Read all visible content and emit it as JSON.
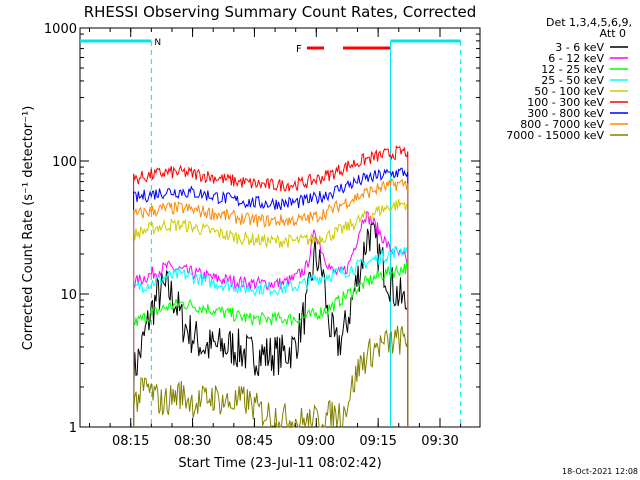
{
  "chart_data": {
    "type": "line",
    "title": "RHESSI Observing Summary Count Rates, Corrected",
    "xlabel": "Start Time (23-Jul-11 08:02:42)",
    "ylabel": "Corrected Count Rate (s⁻¹ detector⁻¹)",
    "yscale": "log",
    "ylim": [
      1,
      1000
    ],
    "xlim_minutes": [
      0,
      97
    ],
    "x_unit": "minutes after 08:02:42",
    "x_ticks": [
      {
        "label": "08:15",
        "minute": 12.3
      },
      {
        "label": "08:30",
        "minute": 27.3
      },
      {
        "label": "08:45",
        "minute": 42.3
      },
      {
        "label": "09:00",
        "minute": 57.3
      },
      {
        "label": "09:15",
        "minute": 72.3
      },
      {
        "label": "09:30",
        "minute": 87.3
      }
    ],
    "y_ticks": [
      {
        "label": "1",
        "value": 1
      },
      {
        "label": "10",
        "value": 10
      },
      {
        "label": "100",
        "value": 100
      },
      {
        "label": "1000",
        "value": 1000
      }
    ],
    "detector_info": {
      "line1": "Det 1,3,4,5,6,9,",
      "line2": "Att 0"
    },
    "legend_position": "right",
    "series": [
      {
        "name": "3 - 6 keV",
        "color": "#000000",
        "points": [
          [
            13,
            2.5
          ],
          [
            15,
            4
          ],
          [
            17,
            7
          ],
          [
            19,
            10
          ],
          [
            21,
            11
          ],
          [
            23,
            9
          ],
          [
            25,
            6
          ],
          [
            27,
            5
          ],
          [
            30,
            4
          ],
          [
            33,
            4
          ],
          [
            37,
            4
          ],
          [
            41,
            3.5
          ],
          [
            45,
            3.5
          ],
          [
            49,
            3.5
          ],
          [
            52,
            4
          ],
          [
            55,
            8
          ],
          [
            57,
            20
          ],
          [
            59,
            14
          ],
          [
            60,
            7
          ],
          [
            62,
            4
          ],
          [
            64,
            5
          ],
          [
            66,
            9
          ],
          [
            68,
            16
          ],
          [
            70,
            30
          ],
          [
            72,
            22
          ],
          [
            74,
            15
          ],
          [
            76,
            11
          ],
          [
            78,
            9
          ],
          [
            79.5,
            8
          ]
        ]
      },
      {
        "name": "6 - 12 keV",
        "color": "#ff00ff",
        "points": [
          [
            13,
            12
          ],
          [
            17,
            14
          ],
          [
            21,
            16
          ],
          [
            25,
            15
          ],
          [
            29,
            14
          ],
          [
            33,
            13
          ],
          [
            37,
            12.5
          ],
          [
            41,
            12
          ],
          [
            45,
            12
          ],
          [
            49,
            12
          ],
          [
            52,
            13
          ],
          [
            55,
            16
          ],
          [
            57,
            30
          ],
          [
            59,
            20
          ],
          [
            61,
            15
          ],
          [
            63,
            14
          ],
          [
            65,
            16
          ],
          [
            67,
            25
          ],
          [
            69,
            40
          ],
          [
            71,
            35
          ],
          [
            73,
            28
          ],
          [
            75,
            22
          ],
          [
            77,
            20
          ],
          [
            79.5,
            18
          ]
        ]
      },
      {
        "name": "12 - 25 keV",
        "color": "#00ff00",
        "points": [
          [
            13,
            6
          ],
          [
            17,
            7
          ],
          [
            21,
            8
          ],
          [
            25,
            8.5
          ],
          [
            29,
            8
          ],
          [
            33,
            7.5
          ],
          [
            37,
            7
          ],
          [
            41,
            6.5
          ],
          [
            45,
            6.5
          ],
          [
            49,
            6.5
          ],
          [
            53,
            6.5
          ],
          [
            57,
            7
          ],
          [
            61,
            8
          ],
          [
            65,
            10
          ],
          [
            69,
            12
          ],
          [
            73,
            14
          ],
          [
            77,
            15
          ],
          [
            79.5,
            16
          ]
        ]
      },
      {
        "name": "25 - 50 keV",
        "color": "#00ffff",
        "points": [
          [
            13,
            11
          ],
          [
            17,
            12
          ],
          [
            21,
            13.5
          ],
          [
            25,
            14
          ],
          [
            29,
            13
          ],
          [
            33,
            12
          ],
          [
            37,
            11.5
          ],
          [
            41,
            11
          ],
          [
            45,
            11
          ],
          [
            49,
            11
          ],
          [
            53,
            11.5
          ],
          [
            57,
            13
          ],
          [
            61,
            14
          ],
          [
            65,
            15
          ],
          [
            69,
            17
          ],
          [
            73,
            19
          ],
          [
            77,
            21
          ],
          [
            79.5,
            22
          ]
        ]
      },
      {
        "name": "50 - 100 keV",
        "color": "#cccc00",
        "points": [
          [
            13,
            28
          ],
          [
            17,
            31
          ],
          [
            21,
            33
          ],
          [
            25,
            33
          ],
          [
            29,
            31
          ],
          [
            33,
            29
          ],
          [
            37,
            27
          ],
          [
            41,
            26
          ],
          [
            45,
            25
          ],
          [
            49,
            25
          ],
          [
            53,
            25
          ],
          [
            57,
            26
          ],
          [
            61,
            28
          ],
          [
            65,
            32
          ],
          [
            69,
            38
          ],
          [
            73,
            43
          ],
          [
            77,
            47
          ],
          [
            79.5,
            48
          ]
        ]
      },
      {
        "name": "100 - 300 keV",
        "color": "#ff0000",
        "points": [
          [
            13,
            73
          ],
          [
            17,
            78
          ],
          [
            21,
            82
          ],
          [
            25,
            82
          ],
          [
            29,
            79
          ],
          [
            33,
            75
          ],
          [
            37,
            71
          ],
          [
            41,
            68
          ],
          [
            45,
            66
          ],
          [
            49,
            66
          ],
          [
            53,
            67
          ],
          [
            57,
            72
          ],
          [
            61,
            80
          ],
          [
            65,
            92
          ],
          [
            69,
            102
          ],
          [
            73,
            110
          ],
          [
            77,
            116
          ],
          [
            79.5,
            118
          ]
        ]
      },
      {
        "name": "300 - 800 keV",
        "color": "#0000ff",
        "points": [
          [
            13,
            52
          ],
          [
            17,
            56
          ],
          [
            21,
            59
          ],
          [
            25,
            59
          ],
          [
            29,
            57
          ],
          [
            33,
            54
          ],
          [
            37,
            51
          ],
          [
            41,
            49
          ],
          [
            45,
            48
          ],
          [
            49,
            48
          ],
          [
            53,
            49
          ],
          [
            57,
            52
          ],
          [
            61,
            58
          ],
          [
            65,
            66
          ],
          [
            69,
            73
          ],
          [
            73,
            78
          ],
          [
            77,
            82
          ],
          [
            79.5,
            83
          ]
        ]
      },
      {
        "name": "800 - 7000 keV",
        "color": "#ff8800",
        "points": [
          [
            13,
            39
          ],
          [
            17,
            42
          ],
          [
            21,
            44
          ],
          [
            25,
            44
          ],
          [
            29,
            42
          ],
          [
            33,
            40
          ],
          [
            37,
            38
          ],
          [
            41,
            36
          ],
          [
            45,
            35.5
          ],
          [
            49,
            35.5
          ],
          [
            53,
            36
          ],
          [
            57,
            38
          ],
          [
            61,
            43
          ],
          [
            65,
            50
          ],
          [
            69,
            57
          ],
          [
            73,
            63
          ],
          [
            77,
            67
          ],
          [
            79.5,
            68
          ]
        ]
      },
      {
        "name": "7000 - 15000 keV",
        "color": "#808000",
        "points": [
          [
            13,
            1.5
          ],
          [
            16,
            2
          ],
          [
            20,
            1.5
          ],
          [
            24,
            1.8
          ],
          [
            28,
            1.5
          ],
          [
            32,
            1.7
          ],
          [
            36,
            1.5
          ],
          [
            40,
            1.6
          ],
          [
            44,
            1.3
          ],
          [
            48,
            1.2
          ],
          [
            52,
            1.1
          ],
          [
            56,
            1.1
          ],
          [
            60,
            1.2
          ],
          [
            64,
            1.3
          ],
          [
            66,
            2
          ],
          [
            68,
            3
          ],
          [
            70,
            3.5
          ],
          [
            72,
            4
          ],
          [
            74,
            4.2
          ],
          [
            77,
            4.5
          ],
          [
            79.5,
            4.5
          ]
        ]
      }
    ],
    "annotations": {
      "night_marker": "N",
      "flare_marker": "F"
    },
    "timestamp": "18-Oct-2021 12:08"
  }
}
